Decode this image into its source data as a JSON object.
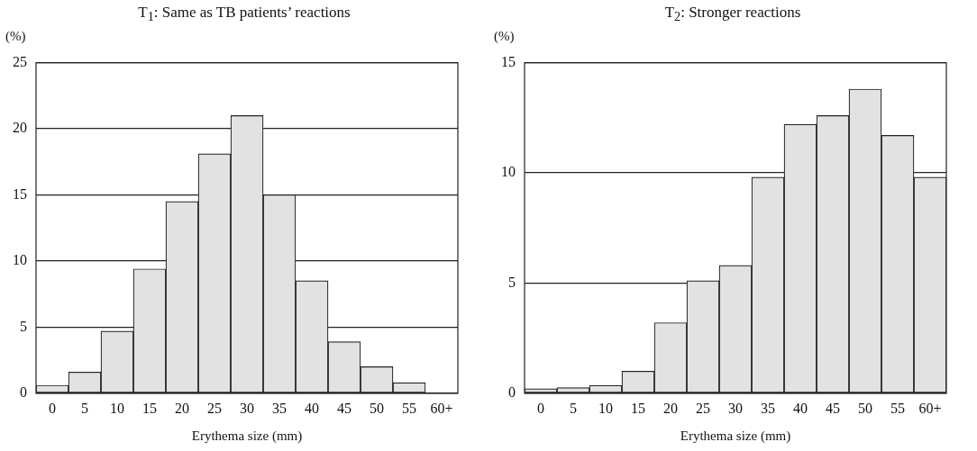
{
  "chart_data": [
    {
      "type": "bar",
      "title": "T$_{1}$: Same as TB patients’ reactions",
      "xlabel": "Erythema size (mm)",
      "ylabel": "(%)",
      "categories": [
        "0",
        "5",
        "10",
        "15",
        "20",
        "25",
        "30",
        "35",
        "40",
        "45",
        "50",
        "55",
        "60+"
      ],
      "values": [
        0.6,
        1.6,
        4.7,
        9.4,
        14.5,
        18.1,
        21,
        15,
        8.5,
        3.9,
        2.0,
        0.8,
        0
      ],
      "color": "#e2e2e2",
      "ylim": [
        0,
        25
      ],
      "yticks": [
        0,
        5,
        10,
        15,
        20,
        25
      ],
      "grid": "y",
      "legend": false
    },
    {
      "type": "bar",
      "title": "T$_{2}$: Stronger reactions",
      "xlabel": "Erythema size (mm)",
      "ylabel": "(%)",
      "categories": [
        "0",
        "5",
        "10",
        "15",
        "20",
        "25",
        "30",
        "35",
        "40",
        "45",
        "50",
        "55",
        "60+"
      ],
      "values": [
        0.2,
        0.25,
        0.35,
        1.0,
        3.2,
        5.1,
        5.8,
        9.8,
        12.2,
        12.6,
        13.8,
        11.7,
        9.8
      ],
      "color": "#e2e2e2",
      "ylim": [
        0,
        15
      ],
      "yticks": [
        0,
        5,
        10,
        15
      ],
      "grid": "y",
      "legend": false
    }
  ]
}
